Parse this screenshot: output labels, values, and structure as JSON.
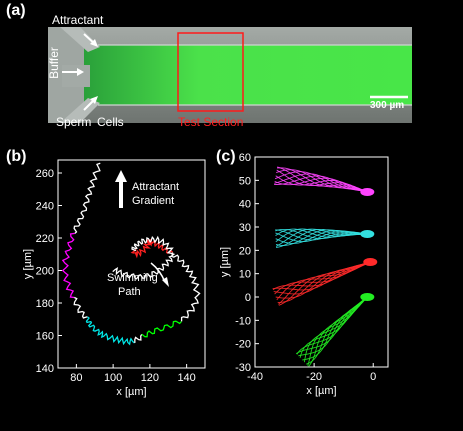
{
  "panel_a": {
    "label": "(a)",
    "attractant": "Attractant",
    "buffer": "Buffer",
    "sperm": "Sperm",
    "cells": "Cells",
    "test_section": "Test Section",
    "scale_bar": "300 µm",
    "colors": {
      "gradient": "#3cff3c",
      "test_box": "#ff1a1a",
      "channel": "#8a8f8c"
    }
  },
  "panel_b": {
    "label": "(b)",
    "attractant_line1": "Attractant",
    "attractant_line2": "Gradient",
    "swimming_line1": "Swimming",
    "swimming_line2": "Path"
  },
  "panel_c": {
    "label": "(c)"
  },
  "chart_data": [
    {
      "type": "line",
      "panel": "(b)",
      "title": "",
      "xlabel": "x [µm]",
      "ylabel": "y [µm]",
      "xlim": [
        70,
        150
      ],
      "ylim": [
        140,
        268
      ],
      "xticks": [
        80,
        100,
        120,
        140
      ],
      "yticks": [
        140,
        160,
        180,
        200,
        220,
        240,
        260
      ],
      "grid": false,
      "series": [
        {
          "color": "#ffffff",
          "note_color_segments": [
            "#ff00ff",
            "#00e5e5",
            "#00ff00",
            "#ff2020"
          ],
          "x": [
            93,
            90,
            88,
            86,
            84,
            81,
            78,
            76,
            74,
            74,
            76,
            79,
            82,
            86,
            88,
            92,
            95,
            100,
            104,
            108,
            112,
            117,
            123,
            131,
            138,
            143,
            146,
            145,
            143,
            140,
            136,
            131,
            127,
            124,
            121,
            119,
            118,
            115,
            112,
            111,
            113,
            116,
            120,
            124,
            128,
            131,
            132,
            129,
            125,
            120,
            114,
            108,
            103,
            100
          ],
          "y": [
            266,
            258,
            251,
            244,
            236,
            229,
            222,
            214,
            206,
            197,
            189,
            182,
            175,
            170,
            166,
            162,
            160,
            158,
            157,
            156,
            157,
            160,
            163,
            166,
            170,
            176,
            183,
            191,
            197,
            202,
            207,
            211,
            214,
            216,
            218,
            217,
            214,
            211,
            210,
            213,
            216,
            218,
            219,
            219,
            217,
            213,
            208,
            204,
            200,
            197,
            196,
            197,
            199,
            201
          ]
        }
      ]
    },
    {
      "type": "line",
      "panel": "(c)",
      "title": "",
      "xlabel": "x [µm]",
      "ylabel": "y [µm]",
      "xlim": [
        -40,
        5
      ],
      "ylim": [
        -30,
        60
      ],
      "xticks": [
        -40,
        -20,
        0
      ],
      "yticks": [
        -30,
        -20,
        -10,
        0,
        10,
        20,
        30,
        40,
        50,
        60
      ],
      "grid": false,
      "series": [
        {
          "color": "#ff44ff",
          "head": [
            -2,
            45
          ],
          "tail": [
            -33,
            52
          ],
          "body": [
            -14,
            50
          ]
        },
        {
          "color": "#33e0e0",
          "head": [
            -2,
            27
          ],
          "tail": [
            -33,
            25
          ],
          "body": [
            -16,
            28
          ]
        },
        {
          "color": "#ff2a2a",
          "head": [
            -1,
            15
          ],
          "tail": [
            -33,
            0
          ],
          "body": [
            -16,
            8
          ]
        },
        {
          "color": "#22ee22",
          "head": [
            -2,
            0
          ],
          "tail": [
            -24,
            -27
          ],
          "body": [
            -14,
            -14
          ]
        }
      ]
    }
  ]
}
